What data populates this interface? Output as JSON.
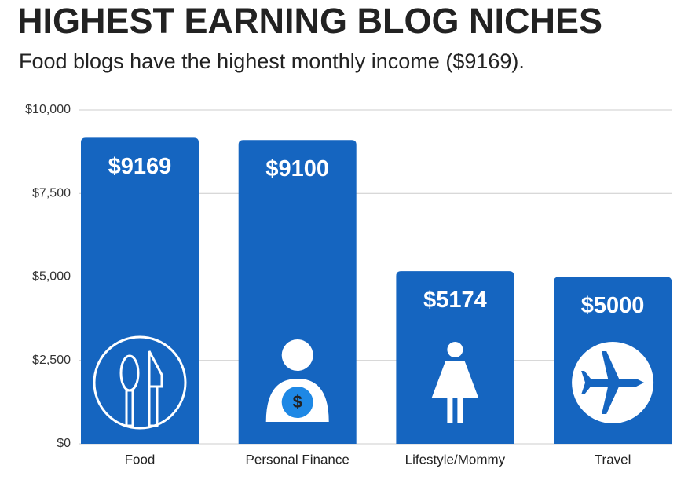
{
  "chart_data": {
    "type": "bar",
    "title": "HIGHEST EARNING BLOG NICHES",
    "subtitle": "Food blogs have the highest monthly income ($9169).",
    "categories": [
      "Food",
      "Personal Finance",
      "Lifestyle/Mommy",
      "Travel"
    ],
    "values": [
      9169,
      9100,
      5174,
      5000
    ],
    "value_labels": [
      "$9169",
      "$9100",
      "$5174",
      "$5000"
    ],
    "color": "#1565c0",
    "ylim": [
      0,
      10000
    ],
    "yticks": [
      {
        "value": 0,
        "label": "$0"
      },
      {
        "value": 2500,
        "label": "$2,500"
      },
      {
        "value": 5000,
        "label": "$5,000"
      },
      {
        "value": 7500,
        "label": "$7,500"
      },
      {
        "value": 10000,
        "label": "$10,000"
      }
    ],
    "grid": true
  }
}
